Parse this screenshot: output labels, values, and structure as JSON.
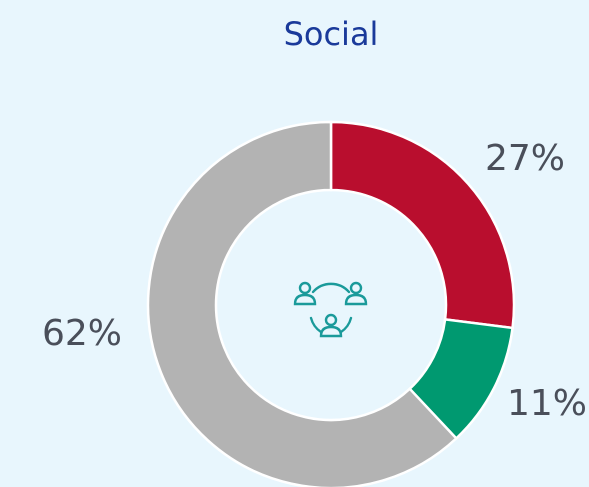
{
  "chart_data": {
    "type": "pie",
    "title": "Social",
    "categories": [
      null,
      null,
      null
    ],
    "values": [
      27,
      11,
      62
    ],
    "value_labels": [
      "27%",
      "11%",
      "62%"
    ],
    "colors": [
      "#b90e2e",
      "#009970",
      "#b3b3b3"
    ]
  }
}
